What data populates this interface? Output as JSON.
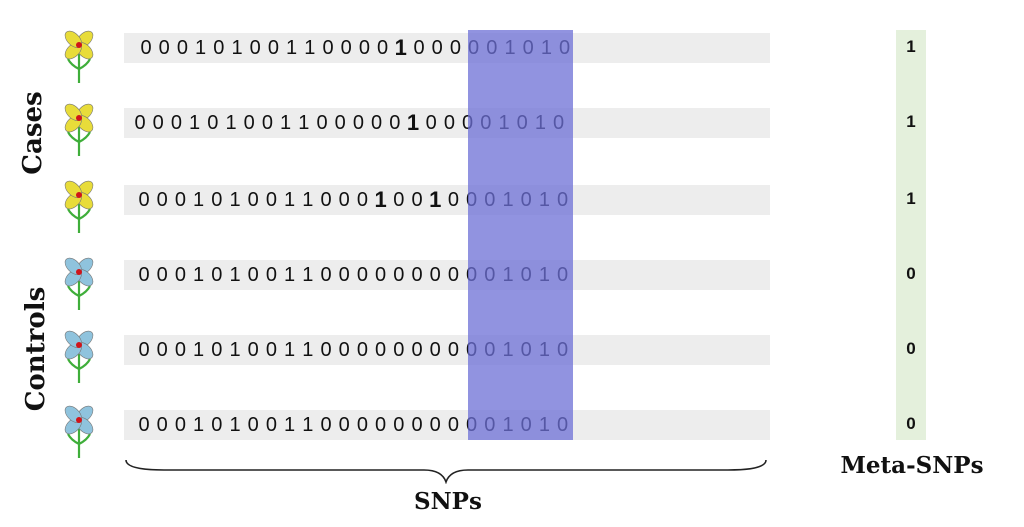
{
  "group_labels": {
    "cases": "Cases",
    "controls": "Controls"
  },
  "axis_labels": {
    "snps": "SNPs",
    "meta_snps": "Meta-SNPs"
  },
  "colors": {
    "row_bg": "#ededed",
    "highlight": "#6c6fd6",
    "meta_bg": "#e4f0dc",
    "case_petal": "#e8dc3a",
    "control_petal": "#8fc3dd",
    "flower_center": "#d0141a",
    "stem": "#3fae3a"
  },
  "rows": [
    {
      "group": "case",
      "bits": [
        "0",
        "0",
        "0",
        "1",
        "0",
        "1",
        "0",
        "0",
        "1",
        "1",
        "0",
        "0",
        "0",
        "0",
        "1",
        "0",
        "0",
        "0",
        "0",
        "0",
        "1",
        "0",
        "1",
        "0"
      ],
      "bold_indices": [
        14
      ],
      "meta": "1"
    },
    {
      "group": "case",
      "bits": [
        "0",
        "0",
        "0",
        "1",
        "0",
        "1",
        "0",
        "0",
        "1",
        "1",
        "0",
        "0",
        "0",
        "0",
        "0",
        "1",
        "0",
        "0",
        "0",
        "0",
        "1",
        "0",
        "1",
        "0"
      ],
      "bold_indices": [
        15
      ],
      "meta": "1"
    },
    {
      "group": "case",
      "bits": [
        "0",
        "0",
        "0",
        "1",
        "0",
        "1",
        "0",
        "0",
        "1",
        "1",
        "0",
        "0",
        "0",
        "1",
        "0",
        "0",
        "1",
        "0",
        "0",
        "0",
        "1",
        "0",
        "1",
        "0"
      ],
      "bold_indices": [
        13,
        16
      ],
      "meta": "1"
    },
    {
      "group": "control",
      "bits": [
        "0",
        "0",
        "0",
        "1",
        "0",
        "1",
        "0",
        "0",
        "1",
        "1",
        "0",
        "0",
        "0",
        "0",
        "0",
        "0",
        "0",
        "0",
        "0",
        "0",
        "1",
        "0",
        "1",
        "0"
      ],
      "bold_indices": [],
      "meta": "0"
    },
    {
      "group": "control",
      "bits": [
        "0",
        "0",
        "0",
        "1",
        "0",
        "1",
        "0",
        "0",
        "1",
        "1",
        "0",
        "0",
        "0",
        "0",
        "0",
        "0",
        "0",
        "0",
        "0",
        "0",
        "1",
        "0",
        "1",
        "0"
      ],
      "bold_indices": [],
      "meta": "0"
    },
    {
      "group": "control",
      "bits": [
        "0",
        "0",
        "0",
        "1",
        "0",
        "1",
        "0",
        "0",
        "1",
        "1",
        "0",
        "0",
        "0",
        "0",
        "0",
        "0",
        "0",
        "0",
        "0",
        "0",
        "1",
        "0",
        "1",
        "0"
      ],
      "bold_indices": [],
      "meta": "0"
    }
  ],
  "icons": {
    "case_flower": "yellow-flower-icon",
    "control_flower": "blue-flower-icon",
    "brace": "curly-brace-icon"
  }
}
